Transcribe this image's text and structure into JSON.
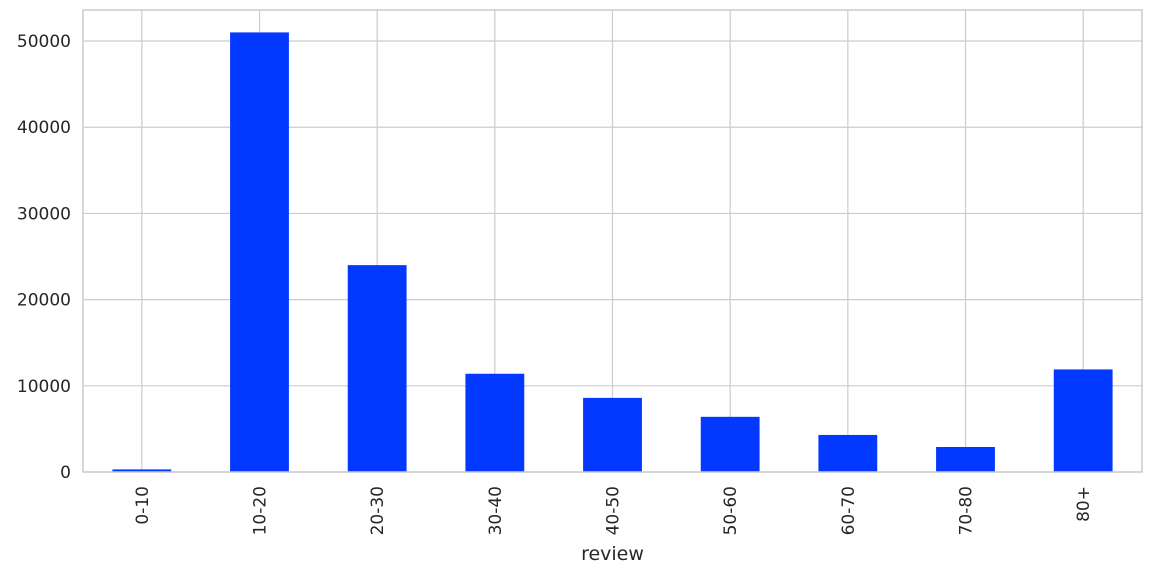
{
  "chart_data": {
    "type": "bar",
    "categories": [
      "0-10",
      "10-20",
      "20-30",
      "30-40",
      "40-50",
      "50-60",
      "60-70",
      "70-80",
      "80+"
    ],
    "values": [
      300,
      51000,
      24000,
      11400,
      8600,
      6400,
      4300,
      2900,
      11900
    ],
    "xlabel": "review",
    "ylabel": "",
    "ylim": [
      0,
      53600
    ],
    "yticks": [
      0,
      10000,
      20000,
      30000,
      40000,
      50000
    ],
    "bar_color": "#0339ff",
    "grid": true,
    "x_tick_rotation": "vertical"
  }
}
